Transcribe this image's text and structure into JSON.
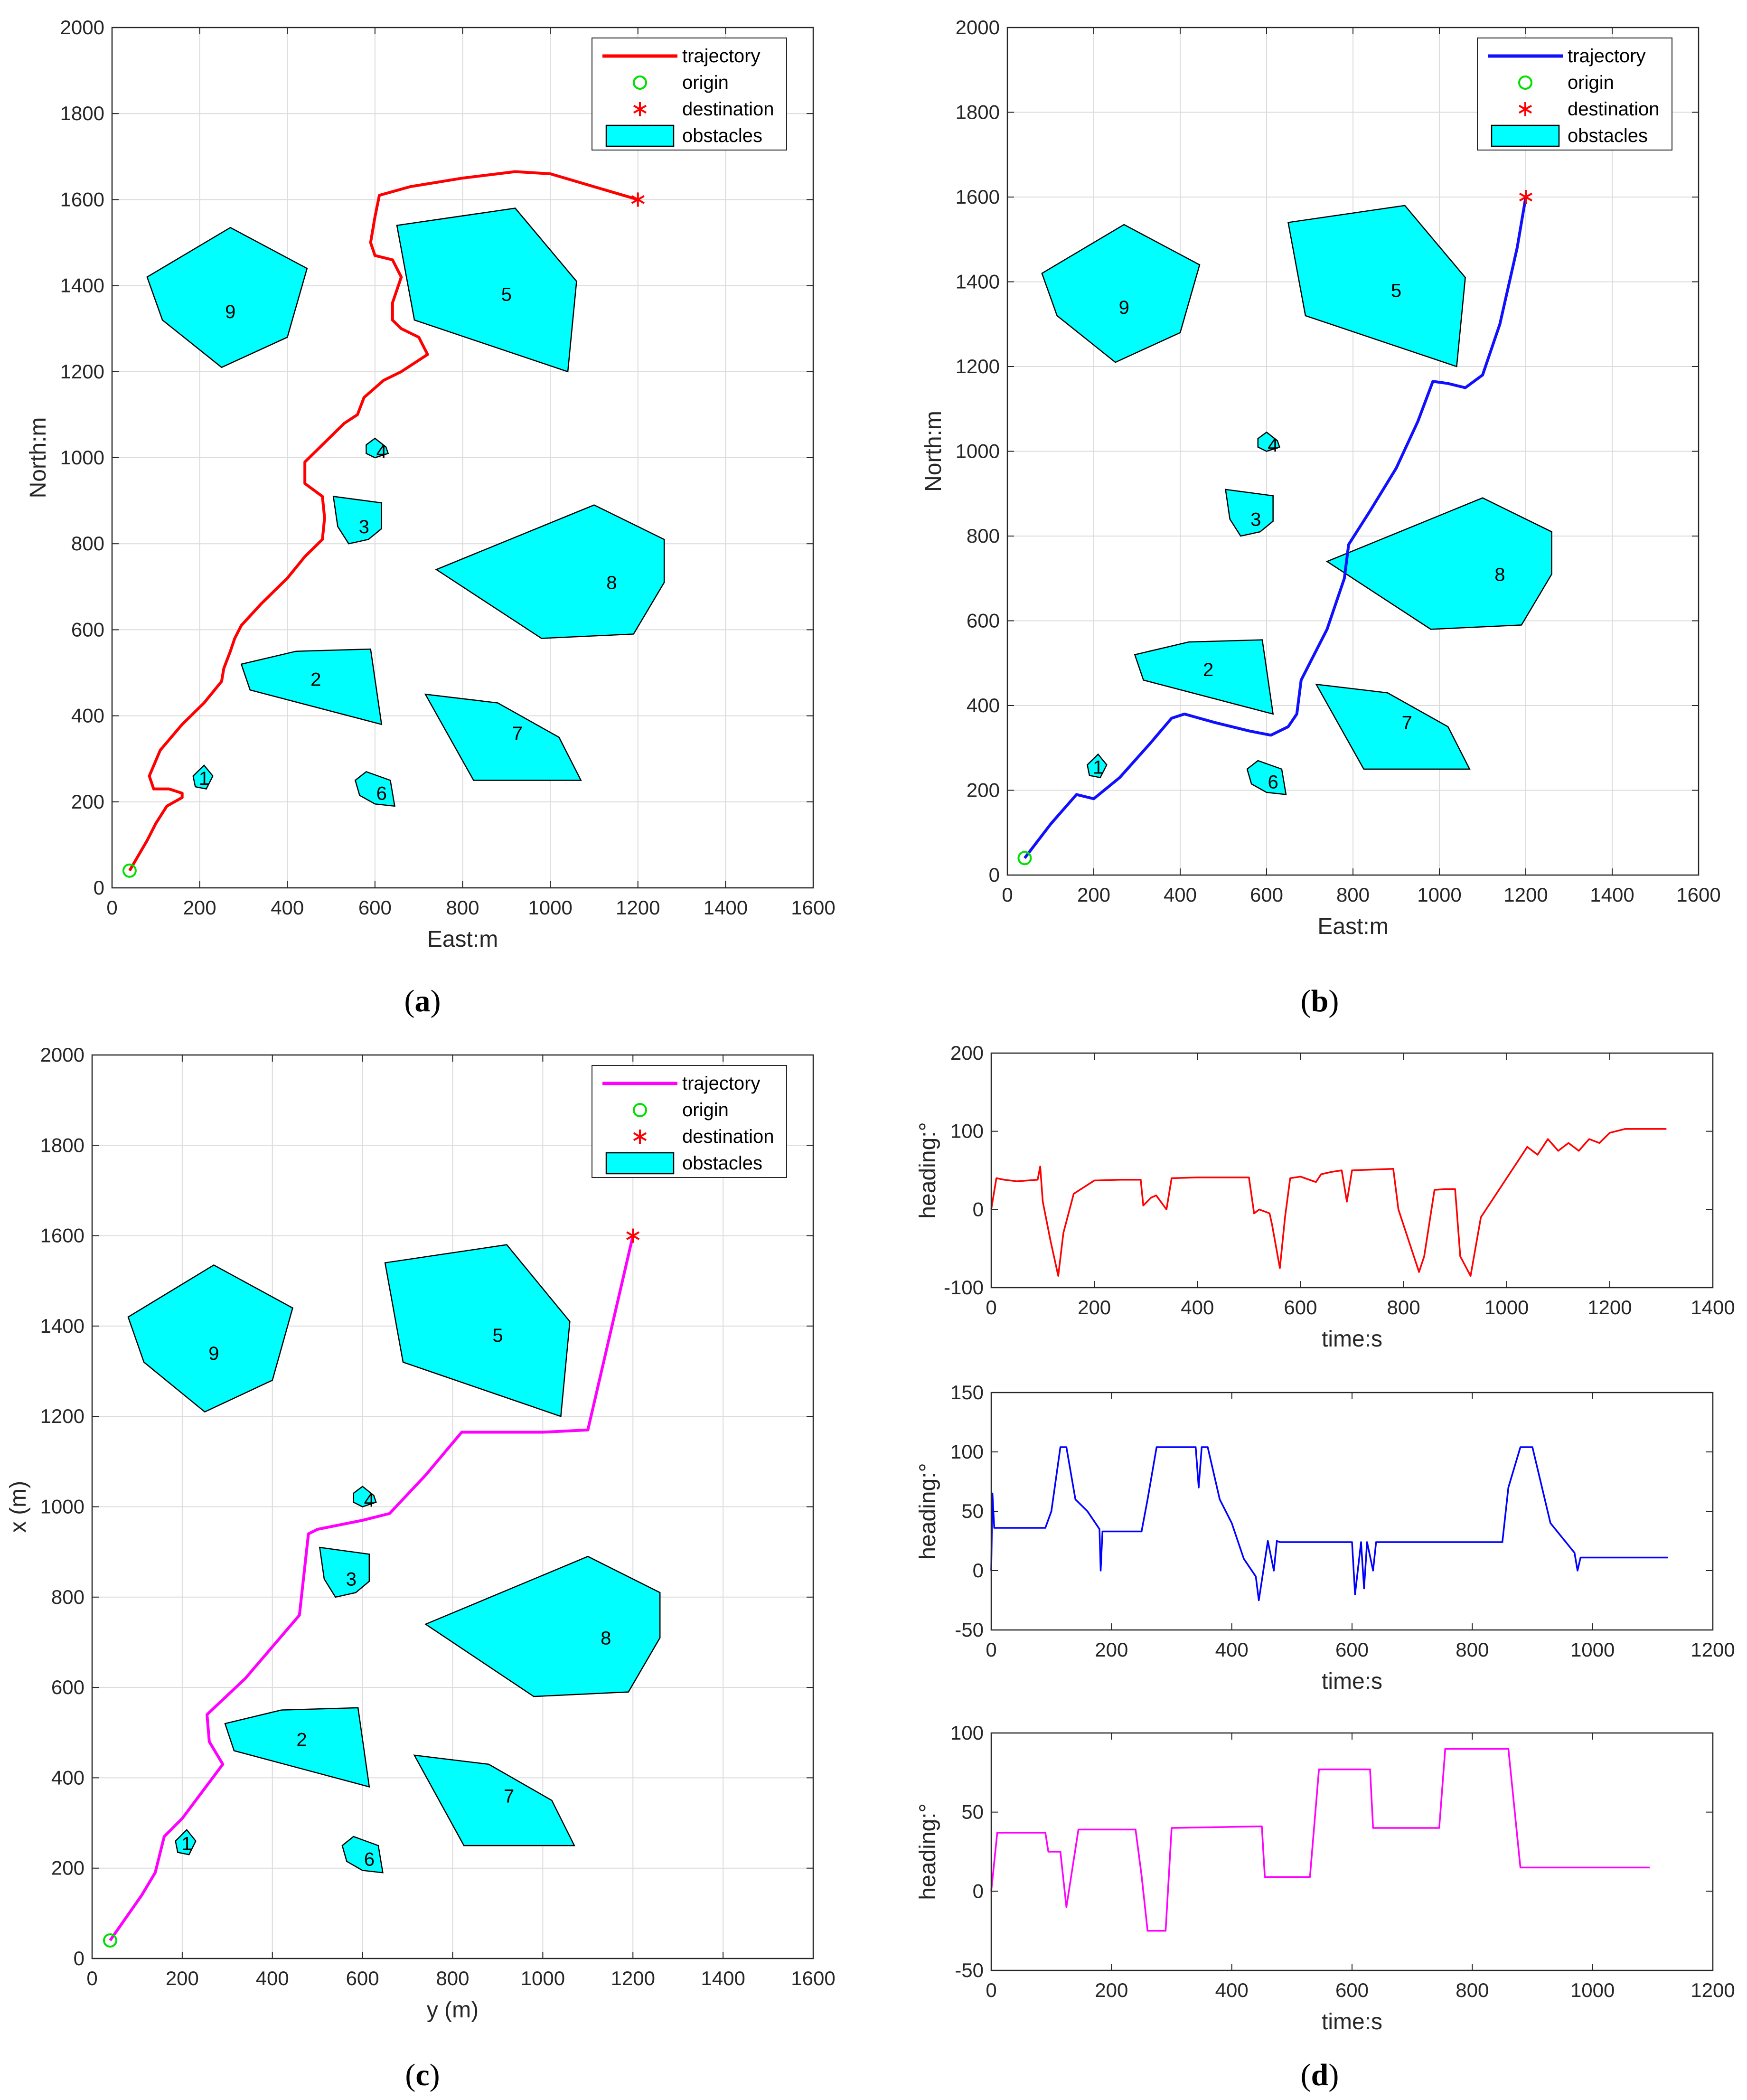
{
  "figure": {
    "panels": [
      "(a)",
      "(b)",
      "(c)",
      "(d)"
    ]
  },
  "chart_data": [
    {
      "id": "a",
      "type": "line",
      "panel_label_prefix": "(",
      "panel_label_letter": "a",
      "panel_label_suffix": ")",
      "xlabel": "East:m",
      "ylabel": "North:m",
      "xlim": [
        0,
        1600
      ],
      "ylim": [
        0,
        2000
      ],
      "xticks": [
        0,
        200,
        400,
        600,
        800,
        1000,
        1200,
        1400,
        1600
      ],
      "yticks": [
        0,
        200,
        400,
        600,
        800,
        1000,
        1200,
        1400,
        1600,
        1800,
        2000
      ],
      "grid": true,
      "legend": [
        "trajectory",
        "origin",
        "destination",
        "obstacles"
      ],
      "legend_position": "top-right",
      "trajectory_color": "#ff0000",
      "origin": [
        40,
        40
      ],
      "destination": [
        1200,
        1600
      ],
      "trajectory": [
        [
          40,
          40
        ],
        [
          80,
          110
        ],
        [
          100,
          150
        ],
        [
          125,
          190
        ],
        [
          160,
          210
        ],
        [
          160,
          220
        ],
        [
          130,
          230
        ],
        [
          95,
          230
        ],
        [
          85,
          260
        ],
        [
          110,
          320
        ],
        [
          160,
          380
        ],
        [
          210,
          430
        ],
        [
          250,
          480
        ],
        [
          255,
          510
        ],
        [
          270,
          550
        ],
        [
          280,
          580
        ],
        [
          295,
          610
        ],
        [
          340,
          660
        ],
        [
          400,
          720
        ],
        [
          440,
          770
        ],
        [
          480,
          810
        ],
        [
          485,
          860
        ],
        [
          480,
          910
        ],
        [
          440,
          940
        ],
        [
          440,
          990
        ],
        [
          480,
          1030
        ],
        [
          530,
          1080
        ],
        [
          560,
          1100
        ],
        [
          575,
          1140
        ],
        [
          620,
          1180
        ],
        [
          660,
          1200
        ],
        [
          720,
          1240
        ],
        [
          700,
          1280
        ],
        [
          660,
          1300
        ],
        [
          640,
          1320
        ],
        [
          640,
          1360
        ],
        [
          660,
          1420
        ],
        [
          640,
          1460
        ],
        [
          600,
          1470
        ],
        [
          590,
          1500
        ],
        [
          600,
          1560
        ],
        [
          610,
          1610
        ],
        [
          680,
          1630
        ],
        [
          800,
          1650
        ],
        [
          920,
          1665
        ],
        [
          1000,
          1660
        ],
        [
          1100,
          1630
        ],
        [
          1200,
          1600
        ]
      ]
    },
    {
      "id": "b",
      "type": "line",
      "panel_label_prefix": "(",
      "panel_label_letter": "b",
      "panel_label_suffix": ")",
      "xlabel": "East:m",
      "ylabel": "North:m",
      "xlim": [
        0,
        1600
      ],
      "ylim": [
        0,
        2000
      ],
      "xticks": [
        0,
        200,
        400,
        600,
        800,
        1000,
        1200,
        1400,
        1600
      ],
      "yticks": [
        0,
        200,
        400,
        600,
        800,
        1000,
        1200,
        1400,
        1600,
        1800,
        2000
      ],
      "grid": true,
      "legend": [
        "trajectory",
        "origin",
        "destination",
        "obstacles"
      ],
      "legend_position": "top-right",
      "trajectory_color": "#1010ff",
      "origin": [
        40,
        40
      ],
      "destination": [
        1200,
        1600
      ],
      "trajectory": [
        [
          40,
          40
        ],
        [
          100,
          120
        ],
        [
          160,
          190
        ],
        [
          200,
          180
        ],
        [
          260,
          230
        ],
        [
          330,
          310
        ],
        [
          380,
          370
        ],
        [
          410,
          380
        ],
        [
          480,
          360
        ],
        [
          560,
          340
        ],
        [
          610,
          330
        ],
        [
          650,
          350
        ],
        [
          670,
          380
        ],
        [
          680,
          460
        ],
        [
          700,
          500
        ],
        [
          740,
          580
        ],
        [
          780,
          700
        ],
        [
          790,
          780
        ],
        [
          840,
          860
        ],
        [
          900,
          960
        ],
        [
          950,
          1070
        ],
        [
          985,
          1165
        ],
        [
          1020,
          1160
        ],
        [
          1060,
          1150
        ],
        [
          1100,
          1180
        ],
        [
          1140,
          1300
        ],
        [
          1180,
          1480
        ],
        [
          1200,
          1600
        ]
      ]
    },
    {
      "id": "c",
      "type": "line",
      "panel_label_prefix": "(",
      "panel_label_letter": "c",
      "panel_label_suffix": ")",
      "xlabel": "y (m)",
      "ylabel": "x (m)",
      "xlim": [
        0,
        1600
      ],
      "ylim": [
        0,
        2000
      ],
      "xticks": [
        0,
        200,
        400,
        600,
        800,
        1000,
        1200,
        1400,
        1600
      ],
      "yticks": [
        0,
        200,
        400,
        600,
        800,
        1000,
        1200,
        1400,
        1600,
        1800,
        2000
      ],
      "grid": true,
      "legend": [
        "trajectory",
        "origin",
        "destination",
        "obstacles"
      ],
      "legend_position": "top-right",
      "trajectory_color": "#ff00ff",
      "origin": [
        40,
        40
      ],
      "destination": [
        1200,
        1600
      ],
      "trajectory": [
        [
          40,
          40
        ],
        [
          110,
          140
        ],
        [
          140,
          190
        ],
        [
          155,
          250
        ],
        [
          160,
          270
        ],
        [
          200,
          310
        ],
        [
          260,
          390
        ],
        [
          290,
          430
        ],
        [
          260,
          480
        ],
        [
          255,
          540
        ],
        [
          340,
          620
        ],
        [
          400,
          690
        ],
        [
          460,
          760
        ],
        [
          480,
          940
        ],
        [
          500,
          950
        ],
        [
          600,
          970
        ],
        [
          660,
          985
        ],
        [
          740,
          1070
        ],
        [
          820,
          1165
        ],
        [
          1000,
          1165
        ],
        [
          1100,
          1170
        ],
        [
          1200,
          1600
        ]
      ]
    },
    {
      "id": "d1",
      "type": "line",
      "panel_label_prefix": "(",
      "panel_label_letter": "d",
      "panel_label_suffix": ")",
      "xlabel": "time:s",
      "ylabel": "heading:°",
      "xlim": [
        0,
        1400
      ],
      "ylim": [
        -100,
        200
      ],
      "xticks": [
        0,
        200,
        400,
        600,
        800,
        1000,
        1200,
        1400
      ],
      "yticks": [
        -100,
        0,
        100,
        200
      ],
      "grid": false,
      "series_color": "#ff0000",
      "x": [
        0,
        10,
        25,
        50,
        90,
        95,
        100,
        115,
        130,
        140,
        160,
        200,
        250,
        290,
        295,
        310,
        320,
        340,
        350,
        400,
        500,
        510,
        520,
        540,
        545,
        560,
        570,
        580,
        600,
        630,
        640,
        660,
        680,
        690,
        700,
        780,
        790,
        800,
        820,
        830,
        840,
        860,
        880,
        900,
        910,
        930,
        950,
        960,
        970,
        1000,
        1040,
        1060,
        1080,
        1100,
        1120,
        1140,
        1160,
        1180,
        1200,
        1230,
        1260,
        1310
      ],
      "values": [
        0,
        40,
        38,
        36,
        38,
        55,
        10,
        -40,
        -85,
        -30,
        20,
        37,
        38,
        38,
        5,
        15,
        18,
        0,
        40,
        41,
        41,
        -5,
        0,
        -5,
        -20,
        -75,
        -10,
        40,
        42,
        35,
        45,
        48,
        50,
        10,
        50,
        52,
        0,
        -20,
        -60,
        -80,
        -60,
        25,
        26,
        26,
        -60,
        -85,
        -10,
        0,
        10,
        40,
        80,
        70,
        90,
        75,
        85,
        75,
        90,
        85,
        98,
        103,
        103,
        103
      ]
    },
    {
      "id": "d2",
      "type": "line",
      "xlabel": "time:s",
      "ylabel": "heading:°",
      "xlim": [
        0,
        1200
      ],
      "ylim": [
        -50,
        150
      ],
      "xticks": [
        0,
        200,
        400,
        600,
        800,
        1000,
        1200
      ],
      "yticks": [
        -50,
        0,
        50,
        100,
        150
      ],
      "grid": false,
      "series_color": "#0000ff",
      "x": [
        0,
        2,
        5,
        90,
        100,
        115,
        125,
        140,
        160,
        180,
        182,
        185,
        250,
        260,
        275,
        340,
        345,
        350,
        360,
        380,
        400,
        420,
        440,
        445,
        460,
        470,
        475,
        480,
        600,
        605,
        615,
        620,
        625,
        635,
        640,
        850,
        860,
        880,
        900,
        930,
        970,
        975,
        980,
        1125
      ],
      "values": [
        0,
        65,
        36,
        36,
        50,
        104,
        104,
        60,
        50,
        35,
        0,
        33,
        33,
        60,
        104,
        104,
        70,
        104,
        104,
        60,
        40,
        10,
        -5,
        -25,
        25,
        0,
        25,
        24,
        24,
        -20,
        24,
        -15,
        24,
        0,
        24,
        24,
        70,
        104,
        104,
        40,
        15,
        0,
        11,
        11
      ]
    },
    {
      "id": "d3",
      "type": "line",
      "xlabel": "time:s",
      "ylabel": "heading:°",
      "xlim": [
        0,
        1200
      ],
      "ylim": [
        -50,
        100
      ],
      "xticks": [
        0,
        200,
        400,
        600,
        800,
        1000,
        1200
      ],
      "yticks": [
        -50,
        0,
        50,
        100
      ],
      "grid": false,
      "series_color": "#ff00ff",
      "x": [
        0,
        10,
        90,
        95,
        115,
        125,
        145,
        240,
        250,
        260,
        290,
        300,
        450,
        455,
        530,
        545,
        630,
        635,
        745,
        755,
        860,
        880,
        1095
      ],
      "values": [
        0,
        37,
        37,
        25,
        25,
        -10,
        39,
        39,
        10,
        -25,
        -25,
        40,
        41,
        9,
        9,
        77,
        77,
        40,
        40,
        90,
        90,
        15,
        15
      ]
    }
  ],
  "obstacles": {
    "fill_color": "#00ffff",
    "edge_color": "#000000",
    "items": [
      {
        "label": "1",
        "label_at": [
          210,
          255
        ],
        "points": [
          [
            185,
            260
          ],
          [
            210,
            285
          ],
          [
            230,
            260
          ],
          [
            215,
            230
          ],
          [
            190,
            235
          ]
        ]
      },
      {
        "label": "2",
        "label_at": [
          465,
          485
        ],
        "points": [
          [
            295,
            520
          ],
          [
            420,
            550
          ],
          [
            590,
            555
          ],
          [
            615,
            380
          ],
          [
            315,
            460
          ]
        ]
      },
      {
        "label": "3",
        "label_at": [
          575,
          840
        ],
        "points": [
          [
            505,
            910
          ],
          [
            615,
            895
          ],
          [
            615,
            835
          ],
          [
            585,
            810
          ],
          [
            540,
            800
          ],
          [
            515,
            840
          ]
        ]
      },
      {
        "label": "4",
        "label_at": [
          615,
          1015
        ],
        "points": [
          [
            580,
            1030
          ],
          [
            600,
            1045
          ],
          [
            625,
            1025
          ],
          [
            630,
            1010
          ],
          [
            600,
            1000
          ],
          [
            580,
            1010
          ]
        ]
      },
      {
        "label": "5",
        "label_at": [
          900,
          1380
        ],
        "points": [
          [
            650,
            1540
          ],
          [
            920,
            1580
          ],
          [
            1060,
            1410
          ],
          [
            1040,
            1200
          ],
          [
            690,
            1320
          ]
        ]
      },
      {
        "label": "6",
        "label_at": [
          615,
          220
        ],
        "points": [
          [
            555,
            250
          ],
          [
            580,
            270
          ],
          [
            635,
            250
          ],
          [
            645,
            190
          ],
          [
            600,
            195
          ],
          [
            565,
            215
          ]
        ]
      },
      {
        "label": "7",
        "label_at": [
          925,
          360
        ],
        "points": [
          [
            715,
            450
          ],
          [
            880,
            430
          ],
          [
            1020,
            350
          ],
          [
            1070,
            250
          ],
          [
            825,
            250
          ]
        ]
      },
      {
        "label": "8",
        "label_at": [
          1140,
          710
        ],
        "points": [
          [
            740,
            740
          ],
          [
            1100,
            890
          ],
          [
            1260,
            810
          ],
          [
            1260,
            710
          ],
          [
            1190,
            590
          ],
          [
            980,
            580
          ]
        ]
      },
      {
        "label": "9",
        "label_at": [
          270,
          1340
        ],
        "points": [
          [
            80,
            1420
          ],
          [
            270,
            1535
          ],
          [
            445,
            1440
          ],
          [
            400,
            1280
          ],
          [
            250,
            1210
          ],
          [
            115,
            1320
          ]
        ]
      }
    ]
  }
}
